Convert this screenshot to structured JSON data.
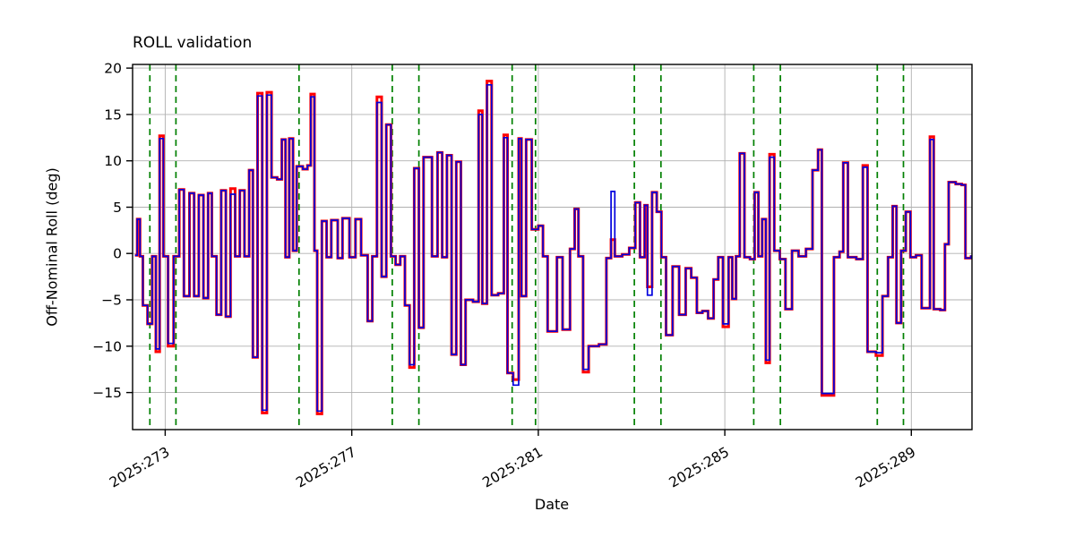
{
  "chart_data": {
    "type": "line",
    "title": "ROLL validation",
    "xlabel": "Date",
    "ylabel": "Off-Nominal Roll (deg)",
    "grid": true,
    "grid_color": "#b0b0b0",
    "axis_color": "#000000",
    "step_mode": "post",
    "xlim": [
      272.3,
      290.3
    ],
    "ylim": [
      -19.0,
      20.4
    ],
    "yticks": [
      -15,
      -10,
      -5,
      0,
      5,
      10,
      15,
      20
    ],
    "xticks": {
      "positions": [
        273,
        277,
        281,
        285,
        289
      ],
      "labels": [
        "2025:273",
        "2025:277",
        "2025:281",
        "2025:285",
        "2025:289"
      ]
    },
    "vlines": {
      "color": "#008000",
      "style": "dashed",
      "positions": [
        272.67,
        273.23,
        275.87,
        277.87,
        278.44,
        280.44,
        280.94,
        283.06,
        283.63,
        285.62,
        286.19,
        288.27,
        288.83
      ]
    },
    "x": [
      272.35,
      272.4,
      272.46,
      272.52,
      272.62,
      272.72,
      272.8,
      272.88,
      272.96,
      273.06,
      273.18,
      273.3,
      273.4,
      273.52,
      273.62,
      273.72,
      273.82,
      273.92,
      274.0,
      274.1,
      274.2,
      274.3,
      274.4,
      274.5,
      274.6,
      274.7,
      274.8,
      274.88,
      274.98,
      275.08,
      275.18,
      275.28,
      275.4,
      275.5,
      275.58,
      275.66,
      275.74,
      275.82,
      275.95,
      276.05,
      276.12,
      276.2,
      276.26,
      276.36,
      276.46,
      276.56,
      276.7,
      276.8,
      276.95,
      277.08,
      277.2,
      277.34,
      277.44,
      277.54,
      277.64,
      277.74,
      277.84,
      277.94,
      278.04,
      278.14,
      278.24,
      278.34,
      278.44,
      278.54,
      278.72,
      278.84,
      278.94,
      279.04,
      279.14,
      279.24,
      279.34,
      279.44,
      279.6,
      279.72,
      279.8,
      279.9,
      280.0,
      280.14,
      280.26,
      280.34,
      280.46,
      280.58,
      280.64,
      280.74,
      280.86,
      281.0,
      281.1,
      281.2,
      281.4,
      281.52,
      281.68,
      281.78,
      281.86,
      281.96,
      282.08,
      282.3,
      282.46,
      282.56,
      282.64,
      282.8,
      282.95,
      283.08,
      283.18,
      283.28,
      283.34,
      283.44,
      283.54,
      283.64,
      283.74,
      283.88,
      284.02,
      284.16,
      284.28,
      284.4,
      284.52,
      284.64,
      284.76,
      284.86,
      284.96,
      285.08,
      285.16,
      285.24,
      285.32,
      285.42,
      285.54,
      285.64,
      285.72,
      285.8,
      285.88,
      285.96,
      286.06,
      286.18,
      286.3,
      286.44,
      286.58,
      286.74,
      286.88,
      287.0,
      287.08,
      287.34,
      287.46,
      287.54,
      287.64,
      287.82,
      287.96,
      288.06,
      288.24,
      288.38,
      288.5,
      288.6,
      288.68,
      288.78,
      288.88,
      288.98,
      289.1,
      289.22,
      289.4,
      289.48,
      289.62,
      289.72,
      289.8,
      289.95,
      290.08,
      290.16,
      290.28
    ],
    "series": [
      {
        "name": "red",
        "color": "#ff0000",
        "linewidth": 3,
        "values": [
          -0.2,
          3.7,
          -0.3,
          -5.6,
          -7.6,
          -0.3,
          -10.6,
          12.7,
          -0.3,
          -10.0,
          -0.3,
          6.9,
          -4.6,
          6.5,
          -4.6,
          6.3,
          -4.8,
          6.5,
          -0.3,
          -6.6,
          6.8,
          -6.8,
          7.0,
          -0.3,
          6.8,
          -0.3,
          9.0,
          -11.2,
          17.3,
          -17.2,
          17.4,
          8.2,
          8.0,
          12.3,
          -0.4,
          12.4,
          0.3,
          9.4,
          9.1,
          9.5,
          17.2,
          0.3,
          -17.3,
          3.5,
          -0.4,
          3.6,
          -0.5,
          3.8,
          -0.4,
          3.7,
          -0.2,
          -7.3,
          -0.3,
          16.9,
          -2.5,
          13.9,
          -0.3,
          -1.2,
          -0.3,
          -5.6,
          -12.3,
          9.2,
          -8.0,
          10.4,
          -0.3,
          10.9,
          -0.4,
          10.6,
          -10.9,
          9.9,
          -12.0,
          -5.0,
          -5.2,
          15.4,
          -5.4,
          18.6,
          -4.5,
          -4.3,
          12.8,
          -12.9,
          -13.6,
          12.4,
          -4.6,
          12.3,
          2.6,
          3.0,
          -0.3,
          -8.4,
          -0.4,
          -8.2,
          0.5,
          4.8,
          -0.3,
          -12.8,
          -10.0,
          -9.8,
          -0.5,
          1.5,
          -0.3,
          -0.1,
          0.6,
          5.5,
          -0.4,
          5.2,
          -3.6,
          6.6,
          4.5,
          -0.4,
          -8.8,
          -1.4,
          -6.6,
          -1.6,
          -2.6,
          -6.4,
          -6.2,
          -7.0,
          -2.8,
          -0.4,
          -7.9,
          -0.4,
          -4.9,
          -0.3,
          10.8,
          -0.4,
          -0.6,
          6.6,
          -0.3,
          3.7,
          -11.8,
          10.7,
          0.3,
          -0.6,
          -6.0,
          0.3,
          -0.3,
          0.5,
          9.0,
          11.2,
          -15.3,
          -0.4,
          0.2,
          9.8,
          -0.4,
          -0.6,
          9.5,
          -10.6,
          -11.0,
          -4.6,
          -0.4,
          5.1,
          -7.5,
          0.3,
          4.5,
          -0.4,
          -0.2,
          -5.9,
          12.6,
          -6.0,
          -6.1,
          1.0,
          7.7,
          7.5,
          7.4,
          -0.5,
          -0.2
        ]
      },
      {
        "name": "blue",
        "color": "#0000dd",
        "linewidth": 1.7,
        "values": [
          -0.2,
          3.7,
          -0.3,
          -5.6,
          -7.6,
          -0.3,
          -10.3,
          12.4,
          -0.3,
          -9.7,
          -0.3,
          6.9,
          -4.6,
          6.5,
          -4.6,
          6.3,
          -4.8,
          6.5,
          -0.3,
          -6.6,
          6.8,
          -6.8,
          6.4,
          -0.3,
          6.8,
          -0.3,
          9.0,
          -11.2,
          17.0,
          -16.9,
          17.1,
          8.2,
          8.0,
          12.3,
          -0.4,
          12.4,
          0.3,
          9.4,
          9.1,
          9.5,
          16.9,
          0.3,
          -17.0,
          3.5,
          -0.4,
          3.6,
          -0.5,
          3.8,
          -0.4,
          3.7,
          -0.2,
          -7.3,
          -0.3,
          16.3,
          -2.5,
          13.9,
          -0.3,
          -1.2,
          -0.3,
          -5.6,
          -12.0,
          9.2,
          -8.0,
          10.4,
          -0.3,
          10.9,
          -0.4,
          10.6,
          -10.9,
          9.9,
          -12.0,
          -5.0,
          -5.2,
          15.0,
          -5.4,
          18.2,
          -4.5,
          -4.3,
          12.5,
          -12.9,
          -14.2,
          12.4,
          -4.6,
          12.3,
          2.6,
          3.0,
          -0.3,
          -8.4,
          -0.4,
          -8.2,
          0.5,
          4.8,
          -0.3,
          -12.5,
          -10.0,
          -9.8,
          -0.5,
          6.7,
          -0.3,
          -0.1,
          0.6,
          5.5,
          -0.4,
          5.2,
          -4.5,
          6.6,
          4.5,
          -0.4,
          -8.8,
          -1.4,
          -6.6,
          -1.6,
          -2.6,
          -6.4,
          -6.2,
          -7.0,
          -2.8,
          -0.4,
          -7.6,
          -0.4,
          -4.9,
          -0.3,
          10.8,
          -0.4,
          -0.6,
          6.6,
          -0.3,
          3.7,
          -11.5,
          10.4,
          0.3,
          -0.6,
          -6.0,
          0.3,
          -0.3,
          0.5,
          9.0,
          11.2,
          -15.1,
          -0.4,
          0.2,
          9.8,
          -0.4,
          -0.6,
          9.3,
          -10.6,
          -10.7,
          -4.6,
          -0.4,
          5.1,
          -7.5,
          0.3,
          4.5,
          -0.4,
          -0.2,
          -5.9,
          12.3,
          -6.0,
          -6.1,
          1.0,
          7.7,
          7.5,
          7.4,
          -0.5,
          -0.2
        ]
      }
    ]
  }
}
